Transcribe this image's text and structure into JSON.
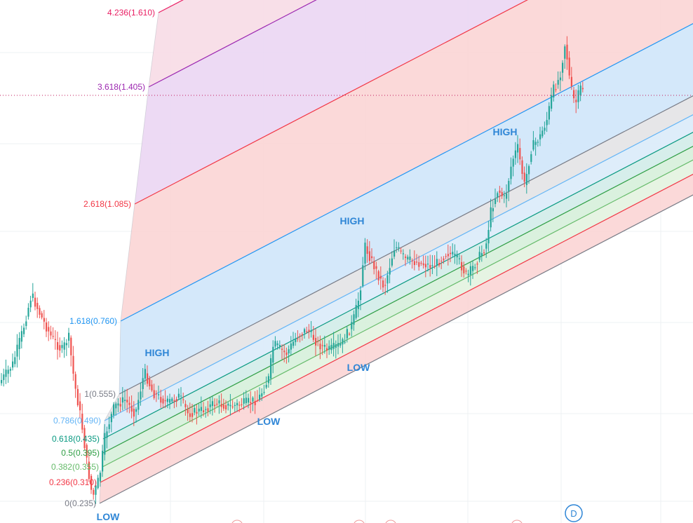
{
  "chart_data": {
    "type": "candlestick",
    "tool": "fibonacci-channel",
    "grid": true,
    "colors": {
      "bull": "#26a69a",
      "bear": "#ef5350",
      "crosshair": "#c2185b",
      "badge": "#2f86d6"
    },
    "fib_levels": [
      {
        "ratio": "0",
        "price": 0.235,
        "text": "0(0.235)",
        "color": "#787b86",
        "fill": "#e0e0e3"
      },
      {
        "ratio": "0.236",
        "price": 0.31,
        "text": "0.236(0.310)",
        "color": "#f23645",
        "fill": "#fbd5d5"
      },
      {
        "ratio": "0.382",
        "price": 0.355,
        "text": "0.382(0.355)",
        "color": "#66bb6a",
        "fill": "#e3f3e0"
      },
      {
        "ratio": "0.5",
        "price": 0.395,
        "text": "0.5(0.395)",
        "color": "#2e9e44",
        "fill": "#d6efda"
      },
      {
        "ratio": "0.618",
        "price": 0.435,
        "text": "0.618(0.435)",
        "color": "#089981",
        "fill": "#d2ece9"
      },
      {
        "ratio": "0.786",
        "price": 0.49,
        "text": "0.786(0.490)",
        "color": "#64b5f6",
        "fill": "#daebfa"
      },
      {
        "ratio": "1",
        "price": 0.555,
        "text": "1(0.555)",
        "color": "#787b86",
        "fill": "#e3e3e6"
      },
      {
        "ratio": "1.618",
        "price": 0.76,
        "text": "1.618(0.760)",
        "color": "#2196f3",
        "fill": "#cfe5fa"
      },
      {
        "ratio": "2.618",
        "price": 1.085,
        "text": "2.618(1.085)",
        "color": "#f23645",
        "fill": "#fbd5d5"
      },
      {
        "ratio": "3.618",
        "price": 1.405,
        "text": "3.618(1.405)",
        "color": "#9c27b0",
        "fill": "#ebd6f3"
      },
      {
        "ratio": "4.236",
        "price": 1.61,
        "text": "4.236(1.610)",
        "color": "#e91e63",
        "fill": "#f7dbe6"
      }
    ],
    "swing_labels": [
      {
        "text": "LOW",
        "kind": "low"
      },
      {
        "text": "HIGH",
        "kind": "high"
      },
      {
        "text": "LOW",
        "kind": "low"
      },
      {
        "text": "HIGH",
        "kind": "high"
      },
      {
        "text": "LOW",
        "kind": "low"
      },
      {
        "text": "HIGH",
        "kind": "high"
      }
    ],
    "crosshair_price": 1.405,
    "timeframe_badge": "D"
  }
}
